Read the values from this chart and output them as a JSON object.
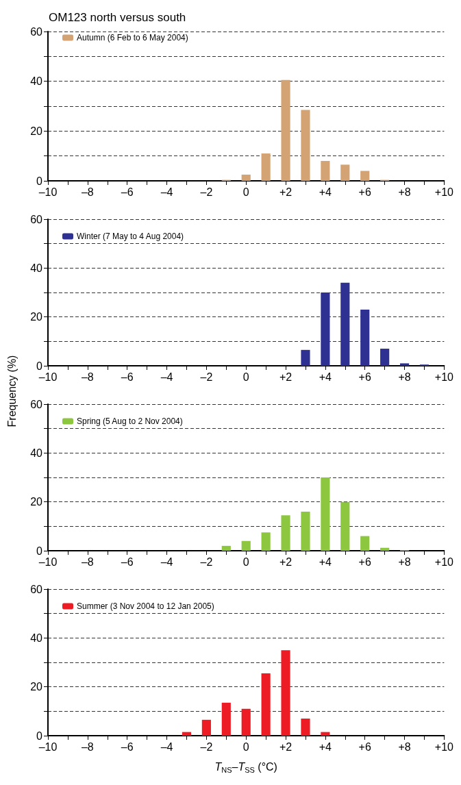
{
  "chart_data": [
    {
      "type": "bar",
      "title": "OM123 north versus south",
      "x": [
        -1,
        0,
        1,
        2,
        3,
        4,
        5,
        6,
        7
      ],
      "series": [
        {
          "name": "Autumn (6 Feb to 6 May 2004)",
          "color": "#d4a373",
          "values": [
            0.4,
            2.5,
            11,
            40.5,
            28.5,
            8,
            6.5,
            4,
            0.4
          ]
        }
      ],
      "xlim": [
        -10,
        10
      ],
      "xticks": [
        {
          "value": -10,
          "label": "–10"
        },
        {
          "value": -9,
          "label": null
        },
        {
          "value": -8,
          "label": "–8"
        },
        {
          "value": -7,
          "label": null
        },
        {
          "value": -6,
          "label": "–6"
        },
        {
          "value": -5,
          "label": null
        },
        {
          "value": -4,
          "label": "–4"
        },
        {
          "value": -3,
          "label": null
        },
        {
          "value": -2,
          "label": "–2"
        },
        {
          "value": -1,
          "label": null
        },
        {
          "value": 0,
          "label": "0"
        },
        {
          "value": 1,
          "label": null
        },
        {
          "value": 2,
          "label": "+2"
        },
        {
          "value": 3,
          "label": null
        },
        {
          "value": 4,
          "label": "+4"
        },
        {
          "value": 5,
          "label": null
        },
        {
          "value": 6,
          "label": "+6"
        },
        {
          "value": 7,
          "label": null
        },
        {
          "value": 8,
          "label": "+8"
        },
        {
          "value": 9,
          "label": null
        },
        {
          "value": 10,
          "label": "+10"
        }
      ],
      "ylim": [
        0,
        60
      ],
      "yticks": [
        0,
        {
          "value": 10,
          "label": null
        },
        20,
        {
          "value": 30,
          "label": null
        },
        40,
        {
          "value": 50,
          "label": null
        },
        60
      ],
      "grid": "y",
      "legend": "top left"
    },
    {
      "type": "bar",
      "ylabel": "Frequency (%)",
      "x": [
        3,
        4,
        5,
        6,
        7,
        8,
        9
      ],
      "series": [
        {
          "name": "Winter (7 May to 4 Aug 2004)",
          "color": "#2e3192",
          "values": [
            6.5,
            30,
            34,
            23,
            7,
            1,
            0.5
          ]
        }
      ],
      "xlim": [
        -10,
        10
      ],
      "xticks": [
        {
          "value": -10,
          "label": "–10"
        },
        {
          "value": -9,
          "label": null
        },
        {
          "value": -8,
          "label": "–8"
        },
        {
          "value": -7,
          "label": null
        },
        {
          "value": -6,
          "label": "–6"
        },
        {
          "value": -5,
          "label": null
        },
        {
          "value": -4,
          "label": "–4"
        },
        {
          "value": -3,
          "label": null
        },
        {
          "value": -2,
          "label": "–2"
        },
        {
          "value": -1,
          "label": null
        },
        {
          "value": 0,
          "label": "0"
        },
        {
          "value": 1,
          "label": null
        },
        {
          "value": 2,
          "label": "+2"
        },
        {
          "value": 3,
          "label": null
        },
        {
          "value": 4,
          "label": "+4"
        },
        {
          "value": 5,
          "label": null
        },
        {
          "value": 6,
          "label": "+6"
        },
        {
          "value": 7,
          "label": null
        },
        {
          "value": 8,
          "label": "+8"
        },
        {
          "value": 9,
          "label": null
        },
        {
          "value": 10,
          "label": "+10"
        }
      ],
      "ylim": [
        0,
        60
      ],
      "yticks": [
        0,
        {
          "value": 10,
          "label": null
        },
        20,
        {
          "value": 30,
          "label": null
        },
        40,
        {
          "value": 50,
          "label": null
        },
        60
      ],
      "grid": "y",
      "legend": "top left"
    },
    {
      "type": "bar",
      "x": [
        -1,
        0,
        1,
        2,
        3,
        4,
        5,
        6,
        7,
        8
      ],
      "series": [
        {
          "name": "Spring (5 Aug to 2 Nov 2004)",
          "color": "#8dc63f",
          "values": [
            2,
            4,
            7.5,
            14.5,
            16,
            30,
            20,
            6,
            1.2,
            0.3
          ]
        }
      ],
      "xlim": [
        -10,
        10
      ],
      "xticks": [
        {
          "value": -10,
          "label": "–10"
        },
        {
          "value": -9,
          "label": null
        },
        {
          "value": -8,
          "label": "–8"
        },
        {
          "value": -7,
          "label": null
        },
        {
          "value": -6,
          "label": "–6"
        },
        {
          "value": -5,
          "label": null
        },
        {
          "value": -4,
          "label": "–4"
        },
        {
          "value": -3,
          "label": null
        },
        {
          "value": -2,
          "label": "–2"
        },
        {
          "value": -1,
          "label": null
        },
        {
          "value": 0,
          "label": "0"
        },
        {
          "value": 1,
          "label": null
        },
        {
          "value": 2,
          "label": "+2"
        },
        {
          "value": 3,
          "label": null
        },
        {
          "value": 4,
          "label": "+4"
        },
        {
          "value": 5,
          "label": null
        },
        {
          "value": 6,
          "label": "+6"
        },
        {
          "value": 7,
          "label": null
        },
        {
          "value": 8,
          "label": "+8"
        },
        {
          "value": 9,
          "label": null
        },
        {
          "value": 10,
          "label": "+10"
        }
      ],
      "ylim": [
        0,
        60
      ],
      "yticks": [
        0,
        {
          "value": 10,
          "label": null
        },
        20,
        {
          "value": 30,
          "label": null
        },
        40,
        {
          "value": 50,
          "label": null
        },
        60
      ],
      "grid": "y",
      "legend": "top left"
    },
    {
      "type": "bar",
      "xlabel": "T$_{NS}$–T$_{SS}$ (°C)",
      "x": [
        -3,
        -2,
        -1,
        0,
        1,
        2,
        3,
        4
      ],
      "series": [
        {
          "name": "Summer (3 Nov 2004 to 12 Jan 2005)",
          "color": "#ed1c24",
          "values": [
            1.5,
            6.5,
            13.5,
            11,
            25.5,
            35,
            7,
            1.5
          ]
        }
      ],
      "xlim": [
        -10,
        10
      ],
      "xticks": [
        {
          "value": -10,
          "label": "–10"
        },
        {
          "value": -9,
          "label": null
        },
        {
          "value": -8,
          "label": "–8"
        },
        {
          "value": -7,
          "label": null
        },
        {
          "value": -6,
          "label": "–6"
        },
        {
          "value": -5,
          "label": null
        },
        {
          "value": -4,
          "label": "–4"
        },
        {
          "value": -3,
          "label": null
        },
        {
          "value": -2,
          "label": "–2"
        },
        {
          "value": -1,
          "label": null
        },
        {
          "value": 0,
          "label": "0"
        },
        {
          "value": 1,
          "label": null
        },
        {
          "value": 2,
          "label": "+2"
        },
        {
          "value": 3,
          "label": null
        },
        {
          "value": 4,
          "label": "+4"
        },
        {
          "value": 5,
          "label": null
        },
        {
          "value": 6,
          "label": "+6"
        },
        {
          "value": 7,
          "label": null
        },
        {
          "value": 8,
          "label": "+8"
        },
        {
          "value": 9,
          "label": null
        },
        {
          "value": 10,
          "label": "+10"
        }
      ],
      "ylim": [
        0,
        60
      ],
      "yticks": [
        0,
        {
          "value": 10,
          "label": null
        },
        20,
        {
          "value": 30,
          "label": null
        },
        40,
        {
          "value": 50,
          "label": null
        },
        60
      ],
      "grid": "y",
      "legend": "top left"
    }
  ]
}
